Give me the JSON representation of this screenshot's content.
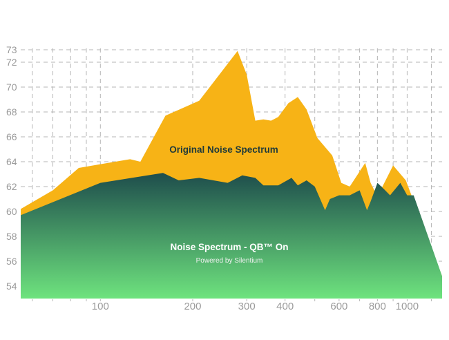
{
  "chart_data": {
    "type": "area",
    "x_scale": "log",
    "xlim": [
      55,
      1300
    ],
    "ylim": [
      53,
      73
    ],
    "x_ticks": [
      100,
      200,
      300,
      400,
      600,
      800,
      1000
    ],
    "y_ticks": [
      54,
      56,
      58,
      60,
      62,
      64,
      66,
      68,
      70,
      72,
      73
    ],
    "grid": true,
    "series": [
      {
        "name": "Original Noise Spectrum",
        "color": "#f7b316",
        "x": [
          55,
          70,
          85,
          100,
          125,
          135,
          163,
          210,
          280,
          300,
          320,
          340,
          360,
          380,
          410,
          440,
          470,
          510,
          570,
          610,
          650,
          730,
          760,
          800,
          900,
          990,
          1300
        ],
        "y": [
          60.2,
          61.7,
          63.5,
          63.8,
          64.2,
          64.0,
          67.7,
          68.9,
          72.9,
          71.0,
          67.3,
          67.4,
          67.3,
          67.6,
          68.7,
          69.2,
          68.2,
          65.9,
          64.5,
          62.3,
          62.0,
          63.9,
          62.3,
          61.2,
          63.7,
          62.5,
          54.8
        ]
      },
      {
        "name": "Noise Spectrum - QB™ On",
        "color_top": "#1e4d4c",
        "color_bottom": "#6ee37e",
        "x": [
          55,
          100,
          160,
          180,
          210,
          260,
          290,
          320,
          340,
          380,
          420,
          440,
          470,
          500,
          540,
          560,
          600,
          650,
          700,
          740,
          760,
          800,
          840,
          880,
          950,
          1000,
          1050,
          1300
        ],
        "y": [
          59.7,
          62.3,
          63.1,
          62.5,
          62.7,
          62.3,
          62.9,
          62.7,
          62.1,
          62.1,
          62.7,
          62.1,
          62.5,
          62.0,
          60.1,
          61.0,
          61.3,
          61.3,
          61.7,
          60.1,
          60.8,
          62.3,
          61.8,
          61.3,
          62.3,
          61.3,
          61.3,
          54.8
        ]
      }
    ],
    "annotations": {
      "original_label": "Original Noise Spectrum",
      "qb_label": "Noise Spectrum - QB™ On",
      "qb_sublabel": "Powered by Silentium"
    }
  }
}
